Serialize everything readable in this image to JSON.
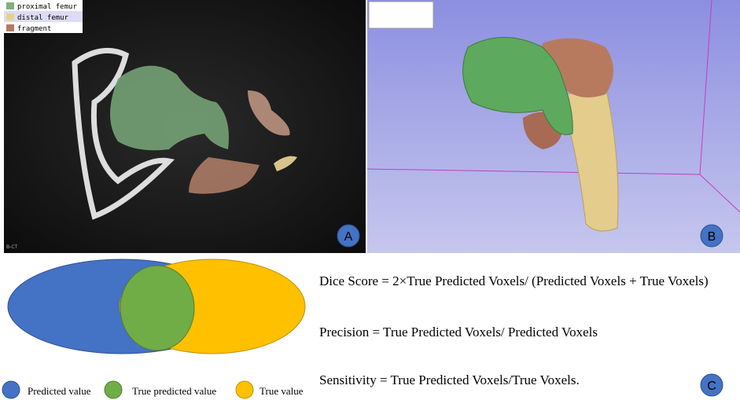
{
  "panel_a": {
    "legend": [
      "proximal femur",
      "distal femur",
      "fragment"
    ],
    "corner_text": "B-CT",
    "label": "A"
  },
  "panel_b": {
    "label": "B"
  },
  "panel_c": {
    "legend": [
      "Predicted value",
      "True predicted value",
      "True value"
    ],
    "formulas": [
      "Dice Score = 2×True Predicted Voxels/ (Predicted Voxels + True Voxels)",
      "Precision = True Predicted Voxels/ Predicted Voxels",
      "Sensitivity = True Predicted Voxels/True Voxels."
    ],
    "label": "C"
  }
}
